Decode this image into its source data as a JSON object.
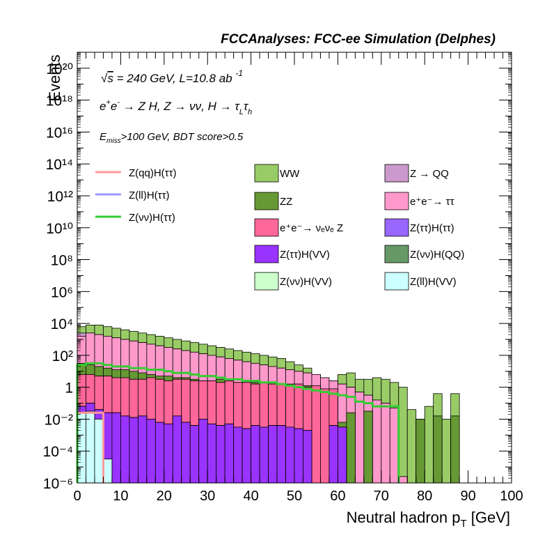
{
  "chart_data": {
    "type": "histogram-stacked",
    "header": "FCCAnalyses: FCC-ee Simulation (Delphes)",
    "annotations": {
      "energy": "√s = 240 GeV, L=10.8 ab",
      "energy_exp": "-1",
      "process": "e⁺e⁻ → Z H, Z → νν, H → τ_L τ_h",
      "cuts": "E_miss>100 GeV, BDT score>0.5"
    },
    "xlabel": "Neutral hadron p_T [GeV]",
    "ylabel": "Events",
    "xlim": [
      0,
      100
    ],
    "ylim_log10": [
      -6,
      21
    ],
    "log_y": true,
    "bin_width": 2,
    "x_tick_labels": [
      "0",
      "10",
      "20",
      "30",
      "40",
      "50",
      "60",
      "70",
      "80",
      "90",
      "100"
    ],
    "y_tick_labels": [
      {
        "log": -6,
        "label": "10⁻⁶"
      },
      {
        "log": -4,
        "label": "10⁻⁴"
      },
      {
        "log": -2,
        "label": "10⁻²"
      },
      {
        "log": 0,
        "label": "1"
      },
      {
        "log": 2,
        "label": "10²"
      },
      {
        "log": 4,
        "label": "10⁴"
      },
      {
        "log": 6,
        "label": "10⁶"
      },
      {
        "log": 8,
        "label": "10⁸"
      },
      {
        "log": 10,
        "label": "10¹⁰"
      },
      {
        "log": 12,
        "label": "10¹²"
      },
      {
        "log": 14,
        "label": "10¹⁴"
      },
      {
        "log": 16,
        "label": "10¹⁶"
      },
      {
        "log": 18,
        "label": "10¹⁸"
      },
      {
        "log": 20,
        "label": "10²⁰"
      }
    ],
    "stack_cumulative_log10": [
      {
        "name": "Z(ll)H(VV)",
        "color": "#ccffff",
        "values": [
          -1.6,
          -1.5,
          -2.0,
          -4.5,
          -7,
          -7,
          -7,
          -7,
          -7,
          -7,
          -7,
          -7,
          -7,
          -7,
          -7,
          -7,
          -7,
          -7,
          -7,
          -7,
          -7,
          -7,
          -7,
          -7,
          -7,
          -7,
          -7,
          -7,
          -7,
          -7,
          -7,
          -7,
          -7,
          -7,
          -7,
          -7,
          -7,
          -7,
          -7,
          -7,
          -7,
          -7,
          -7,
          -7,
          -7,
          -7,
          -7,
          -7,
          -7,
          -7
        ]
      },
      {
        "name": "Z(ττ)H(VV)",
        "color": "#9933ff",
        "values": [
          -1.2,
          -1.0,
          -1.4,
          -1.6,
          -1.6,
          -1.8,
          -1.9,
          -1.8,
          -2.0,
          -2.2,
          -2.3,
          -1.8,
          -2.2,
          -2.4,
          -2.0,
          -2.3,
          -2.4,
          -2.3,
          -2.5,
          -2.6,
          -2.4,
          -2.5,
          -2.4,
          -2.4,
          -2.5,
          -2.6,
          -2.7,
          -7,
          -7,
          -2.4,
          -2.5,
          -7,
          -7,
          -7,
          -7,
          -7,
          -7,
          -7,
          -7,
          -7,
          -7,
          -7,
          -7,
          -7,
          -7,
          -7,
          -7,
          -7,
          -7,
          -7
        ]
      },
      {
        "name": "Z(νν)H(VV)",
        "color": "#ccffcc",
        "values": [
          -1.2,
          -1.0,
          -1.4,
          -1.6,
          -1.6,
          -1.8,
          -1.9,
          -1.8,
          -2.0,
          -2.2,
          -2.3,
          -1.8,
          -2.2,
          -2.4,
          -2.0,
          -2.3,
          -2.4,
          -2.3,
          -2.5,
          -2.6,
          -2.4,
          -2.5,
          -2.4,
          -2.4,
          -2.5,
          -2.6,
          -2.7,
          -7,
          -7,
          -2.4,
          -2.5,
          -7,
          -7,
          -7,
          -7,
          -7,
          -7,
          -7,
          -7,
          -7,
          -7,
          -7,
          -7,
          -7,
          -7,
          -7,
          -7,
          -7,
          -7,
          -7
        ]
      },
      {
        "name": "Z(ττ)H(ττ)",
        "color": "#9966ff",
        "values": [
          -1.2,
          -1.0,
          -1.4,
          -1.6,
          -1.6,
          -1.8,
          -1.9,
          -1.8,
          -2.0,
          -2.2,
          -2.3,
          -1.8,
          -2.2,
          -2.4,
          -2.0,
          -2.3,
          -2.4,
          -2.3,
          -2.5,
          -2.6,
          -2.4,
          -2.5,
          -2.4,
          -2.4,
          -2.5,
          -2.6,
          -2.7,
          -7,
          -7,
          -2.4,
          -2.5,
          -7,
          -7,
          -7,
          -7,
          -7,
          -7,
          -7,
          -7,
          -7,
          -7,
          -7,
          -7,
          -7,
          -7,
          -7,
          -7,
          -7,
          -7,
          -7
        ]
      },
      {
        "name": "e⁺e⁻→ νₑνₑ Z",
        "color": "#ff6699",
        "values": [
          0.8,
          0.8,
          0.7,
          0.7,
          0.6,
          0.6,
          0.5,
          0.5,
          0.6,
          0.5,
          0.4,
          0.5,
          0.5,
          0.4,
          0.4,
          0.4,
          0.3,
          0.4,
          0.3,
          0.3,
          0.2,
          0.3,
          0.2,
          0.2,
          0.1,
          0.2,
          0.0,
          0.1,
          -0.1,
          -0.1,
          -7,
          -7,
          -7,
          -7,
          -7,
          -7,
          -7,
          -7,
          -7,
          -7,
          -7,
          -7,
          -7,
          -7,
          -7,
          -7,
          -7,
          -7,
          -7,
          -7
        ]
      },
      {
        "name": "Z(νν)H(QQ)",
        "color": "#669966",
        "values": [
          0.8,
          0.8,
          0.7,
          0.7,
          0.6,
          0.6,
          0.5,
          0.5,
          0.6,
          0.5,
          0.4,
          0.5,
          0.5,
          0.4,
          0.4,
          0.4,
          0.3,
          0.4,
          0.3,
          0.3,
          0.2,
          0.3,
          0.2,
          0.2,
          0.1,
          0.2,
          0.0,
          0.1,
          -0.1,
          -0.1,
          -7,
          -7,
          -7,
          -7,
          -7,
          -7,
          -7,
          -7,
          -7,
          -7,
          -7,
          -7,
          -7,
          -7,
          -7,
          -7,
          -7,
          -7,
          -7,
          -7
        ]
      },
      {
        "name": "ZZ",
        "color": "#669933",
        "values": [
          1.5,
          1.4,
          1.3,
          1.2,
          1.1,
          1.1,
          1.0,
          0.9,
          0.8,
          0.7,
          0.7,
          0.6,
          0.6,
          0.5,
          0.4,
          0.4,
          0.5,
          0.4,
          0.3,
          0.2,
          0.3,
          0.2,
          0.1,
          0.1,
          0.2,
          0.0,
          0.1,
          -0.1,
          -0.8,
          -1.0,
          -2.2,
          -1.6,
          -7,
          -1.5,
          -7,
          -7,
          -7,
          -7,
          -7,
          -2.0,
          -7,
          -1.8,
          -7,
          -1.8,
          -7,
          -7,
          -7,
          -7,
          -7,
          -7
        ]
      },
      {
        "name": "e⁺e⁻→ ττ",
        "color": "#ff99cc",
        "values": [
          3.2,
          3.4,
          3.3,
          3.2,
          3.1,
          3.0,
          2.9,
          2.8,
          2.7,
          2.6,
          2.5,
          2.4,
          2.3,
          2.2,
          2.1,
          2.0,
          1.9,
          1.8,
          1.7,
          1.6,
          1.5,
          1.4,
          1.3,
          1.2,
          1.1,
          1.0,
          0.9,
          0.8,
          0.6,
          0.4,
          0.2,
          0.0,
          -0.3,
          -0.5,
          -0.8,
          -1.0,
          -1.3,
          -5.6,
          -7,
          -7,
          -7,
          -7,
          -7,
          -7,
          -7,
          -7,
          -7,
          -7,
          -7,
          -7
        ]
      },
      {
        "name": "Z → QQ",
        "color": "#cc99cc",
        "values": [
          3.4,
          3.4,
          3.3,
          3.2,
          3.1,
          3.0,
          2.9,
          2.8,
          2.7,
          2.6,
          2.5,
          2.4,
          2.3,
          2.2,
          2.1,
          2.0,
          1.9,
          1.8,
          1.7,
          1.6,
          1.5,
          1.4,
          1.3,
          1.2,
          1.1,
          1.0,
          0.9,
          0.8,
          0.6,
          0.4,
          0.2,
          0.0,
          -0.3,
          -0.5,
          -0.8,
          -1.0,
          -1.3,
          -5.6,
          -7,
          -7,
          -7,
          -7,
          -7,
          -7,
          -7,
          -7,
          -7,
          -7,
          -7,
          -7
        ]
      },
      {
        "name": "WW",
        "color": "#99cc66",
        "values": [
          3.8,
          3.9,
          3.9,
          3.8,
          3.7,
          3.6,
          3.5,
          3.4,
          3.3,
          3.2,
          3.1,
          3.0,
          2.9,
          2.8,
          2.7,
          2.6,
          2.5,
          2.4,
          2.3,
          2.2,
          2.1,
          2.0,
          1.9,
          1.8,
          1.6,
          1.4,
          1.2,
          0.4,
          0.2,
          0.4,
          0.8,
          0.9,
          0.5,
          0.5,
          0.6,
          0.5,
          0.3,
          0.0,
          -1.4,
          -2.0,
          -1.2,
          -0.4,
          -2.0,
          -0.4,
          -7,
          -7,
          -7,
          -7,
          -7,
          -7
        ]
      }
    ],
    "signal_log10": [
      {
        "name": "Z(qq)H(ττ)",
        "color": "#ff9999",
        "values": [
          -1.6,
          -1.6,
          -1.6,
          -7,
          -7,
          -7,
          -7,
          -7,
          -7,
          -7,
          -7,
          -7,
          -7,
          -7,
          -7,
          -7,
          -7,
          -7,
          -7,
          -7,
          -7,
          -7,
          -7,
          -7,
          -7,
          -7,
          -7,
          -7,
          -7,
          -7,
          -7,
          -7,
          -7,
          -7,
          -7,
          -7,
          -7,
          -7,
          -7,
          -7,
          -7,
          -7,
          -7,
          -7,
          -7,
          -7,
          -7,
          -7,
          -7,
          -7
        ]
      },
      {
        "name": "Z(ll)H(ττ)",
        "color": "#9999ff",
        "values": [
          -7,
          -7,
          -7,
          -7,
          -7,
          -7,
          -7,
          -7,
          -7,
          -7,
          -7,
          -7,
          -7,
          -7,
          -7,
          -7,
          -7,
          -7,
          -7,
          -7,
          -7,
          -7,
          -7,
          -7,
          -7,
          -7,
          -7,
          -7,
          -7,
          -7,
          -7,
          -7,
          -7,
          -7,
          -7,
          -7,
          -7,
          -7,
          -7,
          -7,
          -7,
          -7,
          -7,
          -7,
          -7,
          -7,
          -7,
          -7,
          -7,
          -7
        ]
      },
      {
        "name": "Z(νν)H(ττ)",
        "color": "#33cc33",
        "values": [
          1.4,
          1.5,
          1.5,
          1.4,
          1.3,
          1.3,
          1.2,
          1.2,
          1.1,
          1.1,
          1.0,
          0.9,
          0.9,
          0.8,
          0.7,
          0.7,
          0.6,
          0.5,
          0.5,
          0.4,
          0.4,
          0.3,
          0.3,
          0.2,
          0.1,
          0.0,
          -0.1,
          -0.2,
          -0.3,
          -0.4,
          -0.5,
          -0.6,
          -0.9,
          -1.0,
          -1.2,
          -1.2,
          -1.2,
          -7,
          -7,
          -7,
          -7,
          -7,
          -7,
          -7,
          -7,
          -7,
          -7,
          -7,
          -7,
          -7
        ]
      }
    ],
    "legend": {
      "lines": [
        "Z(qq)H(ττ)",
        "Z(ll)H(ττ)",
        "Z(νν)H(ττ)"
      ],
      "boxes": [
        {
          "label": "WW",
          "color": "#99cc66"
        },
        {
          "label": "Z → QQ",
          "color": "#cc99cc"
        },
        {
          "label": "ZZ",
          "color": "#669933"
        },
        {
          "label": "e⁺e⁻→ ττ",
          "color": "#ff99cc"
        },
        {
          "label": "e⁺e⁻→ νₑνₑ Z",
          "color": "#ff6699"
        },
        {
          "label": "Z(ττ)H(ττ)",
          "color": "#9966ff"
        },
        {
          "label": "Z(ττ)H(VV)",
          "color": "#9933ff"
        },
        {
          "label": "Z(νν)H(QQ)",
          "color": "#669966"
        },
        {
          "label": "Z(νν)H(VV)",
          "color": "#ccffcc"
        },
        {
          "label": "Z(ll)H(VV)",
          "color": "#ccffff"
        }
      ]
    }
  }
}
